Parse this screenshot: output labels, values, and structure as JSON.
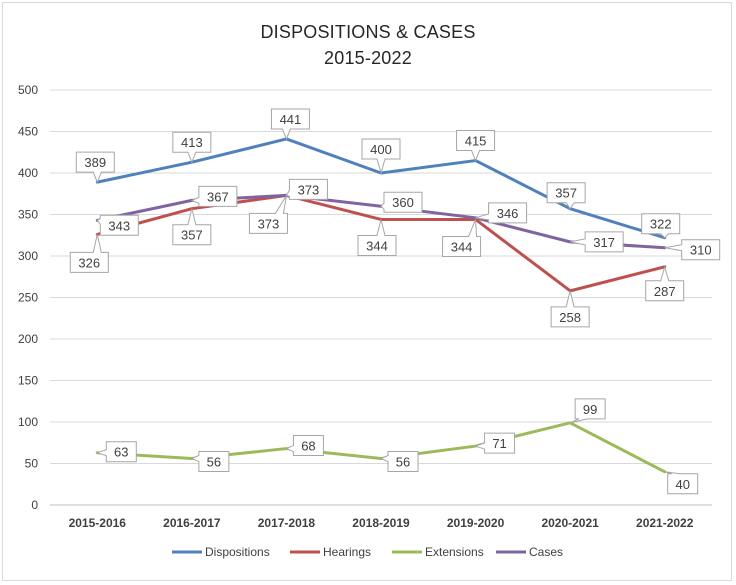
{
  "chart_data": {
    "type": "line",
    "title": [
      "DISPOSITIONS & CASES",
      "2015-2022"
    ],
    "categories": [
      "2015-2016",
      "2016-2017",
      "2017-2018",
      "2018-2019",
      "2019-2020",
      "2020-2021",
      "2021-2022"
    ],
    "ylim": [
      0,
      500
    ],
    "yticks": [
      0,
      50,
      100,
      150,
      200,
      250,
      300,
      350,
      400,
      450,
      500
    ],
    "grid": true,
    "legend": "bottom",
    "series": [
      {
        "name": "Dispositions",
        "color": "#4f81bd",
        "values": [
          389,
          413,
          441,
          400,
          415,
          357,
          322
        ]
      },
      {
        "name": "Hearings",
        "color": "#c0504d",
        "values": [
          326,
          357,
          373,
          344,
          344,
          258,
          287
        ]
      },
      {
        "name": "Extensions",
        "color": "#9bbb59",
        "values": [
          63,
          56,
          68,
          56,
          71,
          99,
          40
        ]
      },
      {
        "name": "Cases",
        "color": "#8064a2",
        "values": [
          343,
          367,
          373,
          360,
          346,
          317,
          310
        ]
      }
    ]
  }
}
